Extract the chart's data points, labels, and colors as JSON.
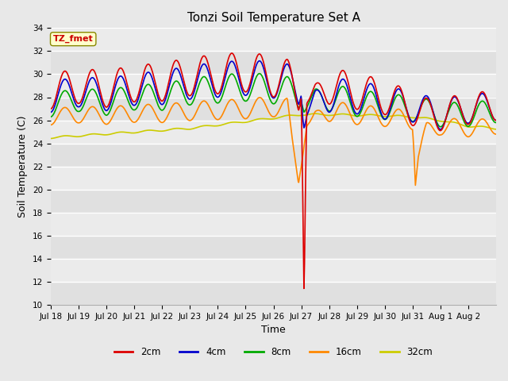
{
  "title": "Tonzi Soil Temperature Set A",
  "xlabel": "Time",
  "ylabel": "Soil Temperature (C)",
  "ylim": [
    10,
    34
  ],
  "yticks": [
    10,
    12,
    14,
    16,
    18,
    20,
    22,
    24,
    26,
    28,
    30,
    32,
    34
  ],
  "xtick_labels": [
    "Jul 18",
    "Jul 19",
    "Jul 20",
    "Jul 21",
    "Jul 22",
    "Jul 23",
    "Jul 24",
    "Jul 25",
    "Jul 26",
    "Jul 27",
    "Jul 28",
    "Jul 29",
    "Jul 30",
    "Jul 31",
    "Aug 1",
    "Aug 2"
  ],
  "series_colors": [
    "#dd0000",
    "#0000cc",
    "#00aa00",
    "#ff8800",
    "#cccc00"
  ],
  "series_labels": [
    "2cm",
    "4cm",
    "8cm",
    "16cm",
    "32cm"
  ],
  "annotation_text": "TZ_fmet",
  "annotation_color": "#cc0000",
  "annotation_bg": "#ffffcc",
  "bg_color": "#e8e8e8",
  "line_width": 1.2,
  "n_days": 16,
  "pts_per_day": 48
}
